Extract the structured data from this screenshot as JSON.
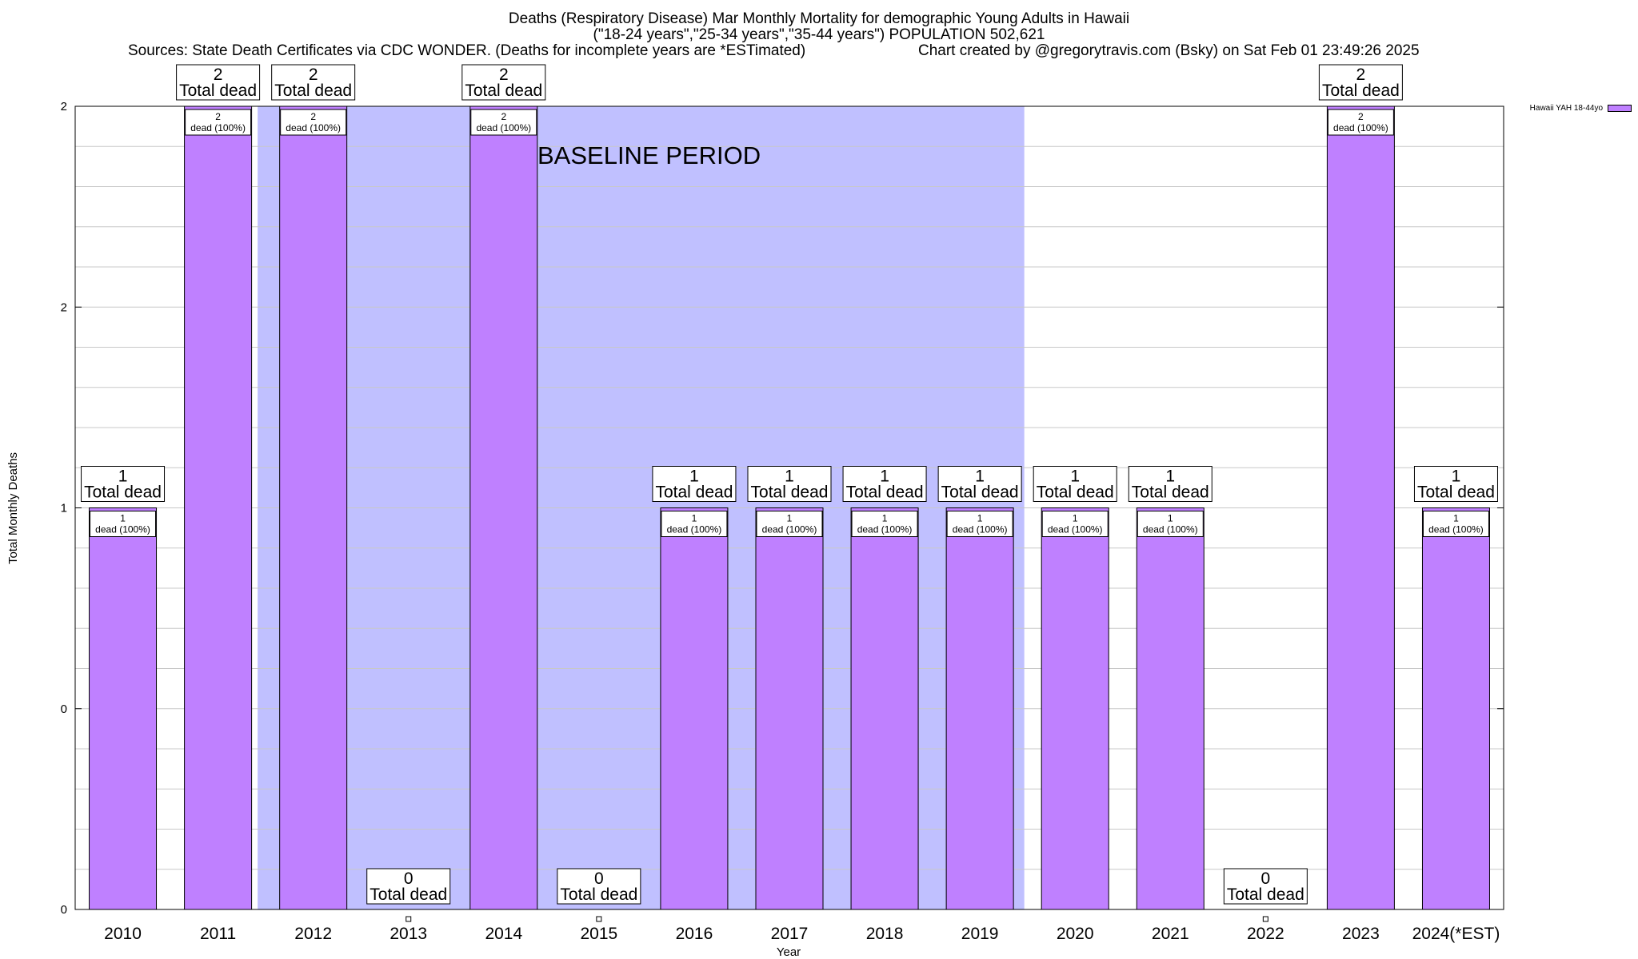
{
  "header": {
    "title_line1": "Deaths (Respiratory Disease) Mar Monthly Mortality for demographic Young Adults in Hawaii",
    "title_line2": "(\"18-24 years\",\"25-34 years\",\"35-44 years\") POPULATION 502,621",
    "sources": "Sources: State Death Certificates via CDC WONDER. (Deaths for incomplete years are *ESTimated)",
    "credit": "Chart created by @gregorytravis.com (Bsky) on Sat Feb 01 23:49:26 2025"
  },
  "legend": {
    "label": "Hawaii YAH 18-44yo"
  },
  "colors": {
    "bar": "#bf80ff",
    "baseline": "#c0c0ff",
    "grid": "#c8c8c8"
  },
  "chart_data": {
    "type": "bar",
    "title": "Deaths (Respiratory Disease) Mar Monthly Mortality for demographic Young Adults in Hawaii",
    "xlabel": "Year",
    "ylabel": "Total Monthly Deaths",
    "categories": [
      "2010",
      "2011",
      "2012",
      "2013",
      "2014",
      "2015",
      "2016",
      "2017",
      "2018",
      "2019",
      "2020",
      "2021",
      "2022",
      "2023",
      "2024(*EST)"
    ],
    "series": [
      {
        "name": "Hawaii YAH 18-44yo",
        "values": [
          1,
          2,
          2,
          0,
          2,
          0,
          1,
          1,
          1,
          1,
          1,
          1,
          0,
          2,
          1
        ]
      }
    ],
    "ylim": [
      0,
      2
    ],
    "ytick_labels": [
      "0",
      "0",
      "1",
      "2",
      "2"
    ],
    "total_label_suffix": "Total dead",
    "bar_label_suffix": "dead (100%)",
    "baseline": {
      "label": "BASELINE PERIOD",
      "start_category": "2012",
      "end_category": "2019"
    },
    "legend_position": "top-right",
    "grid": true
  }
}
